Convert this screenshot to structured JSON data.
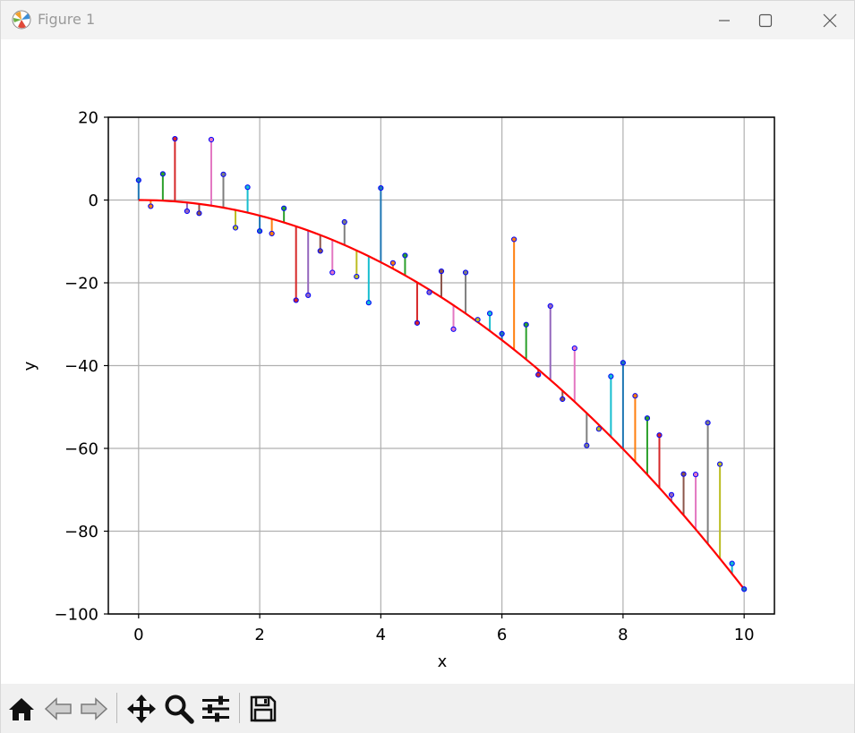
{
  "window": {
    "title": "Figure 1",
    "icon": "matplotlib-logo-icon",
    "controls": [
      "minimize-icon",
      "maximize-icon",
      "close-icon"
    ]
  },
  "toolbar": {
    "buttons": [
      {
        "name": "home-button",
        "icon": "home-icon"
      },
      {
        "name": "back-button",
        "icon": "back-arrow-icon"
      },
      {
        "name": "forward-button",
        "icon": "forward-arrow-icon"
      },
      {
        "name": "pan-button",
        "icon": "pan-move-icon"
      },
      {
        "name": "zoom-button",
        "icon": "zoom-magnifier-icon"
      },
      {
        "name": "configure-subplots-button",
        "icon": "sliders-icon"
      },
      {
        "name": "save-button",
        "icon": "save-floppy-icon"
      }
    ]
  },
  "chart_data": {
    "type": "line",
    "title": "",
    "xlabel": "x",
    "ylabel": "y",
    "xlim": [
      -0.5,
      10.5
    ],
    "ylim": [
      -100,
      20
    ],
    "xticks": [
      0,
      2,
      4,
      6,
      8,
      10
    ],
    "yticks": [
      20,
      0,
      -20,
      -40,
      -60,
      -80,
      -100
    ],
    "xtick_labels": [
      "0",
      "2",
      "4",
      "6",
      "8",
      "10"
    ],
    "ytick_labels": [
      "20",
      "0",
      "−20",
      "−40",
      "−60",
      "−80",
      "−100"
    ],
    "grid": true,
    "fit_line": {
      "equation": "y = -0.94 x^2",
      "color": "#ff0000"
    },
    "stem_colors": [
      "#1f77b4",
      "#ff7f0e",
      "#2ca02c",
      "#d62728",
      "#9467bd",
      "#8c564b",
      "#e377c2",
      "#7f7f7f",
      "#bcbd22",
      "#17becf"
    ],
    "marker_color": "#0000ff",
    "points": {
      "x": [
        0.0,
        0.2,
        0.4,
        0.6,
        0.8,
        1.0,
        1.2,
        1.4,
        1.6,
        1.8,
        2.0,
        2.2,
        2.4,
        2.6,
        2.8,
        3.0,
        3.2,
        3.4,
        3.6,
        3.8,
        4.0,
        4.2,
        4.4,
        4.6,
        4.8,
        5.0,
        5.2,
        5.4,
        5.6,
        5.8,
        6.0,
        6.2,
        6.4,
        6.6,
        6.8,
        7.0,
        7.2,
        7.4,
        7.6,
        7.8,
        8.0,
        8.2,
        8.4,
        8.6,
        8.8,
        9.0,
        9.2,
        9.4,
        9.6,
        9.8,
        10.0
      ],
      "y": [
        4.8,
        -1.5,
        6.3,
        14.8,
        -2.7,
        -3.2,
        14.6,
        6.2,
        -6.7,
        3.1,
        -7.5,
        -8.1,
        -2.0,
        -24.2,
        -23.0,
        -12.3,
        -17.5,
        -5.3,
        -18.5,
        -24.8,
        2.9,
        -15.2,
        -13.4,
        -29.7,
        -22.3,
        -17.2,
        -31.2,
        -17.5,
        -28.9,
        -27.4,
        -32.3,
        -9.5,
        -30.1,
        -42.2,
        -25.6,
        -48.1,
        -35.8,
        -59.3,
        -55.3,
        -42.6,
        -39.3,
        -47.3,
        -52.7,
        -56.8,
        -71.2,
        -66.2,
        -66.3,
        -53.8,
        -63.8,
        -87.8,
        -94.0
      ]
    }
  }
}
